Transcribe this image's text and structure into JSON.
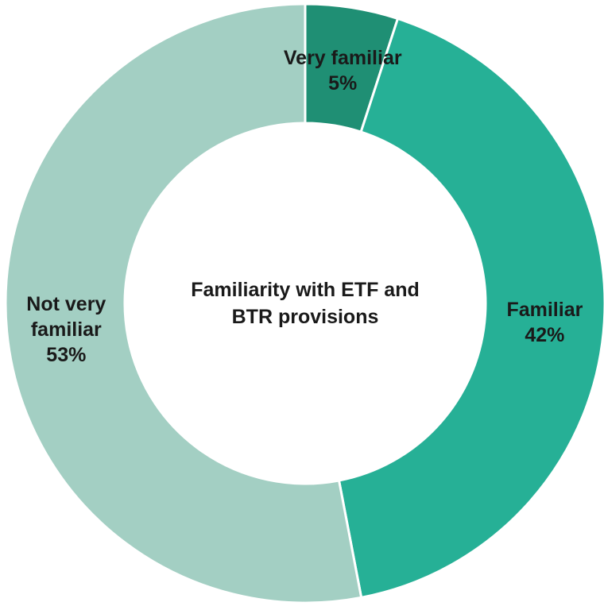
{
  "chart_data": {
    "type": "donut",
    "title": "Familiarity with ETF and BTR provisions",
    "categories": [
      "Very familiar",
      "Familiar",
      "Not very familiar"
    ],
    "values": [
      5,
      42,
      53
    ],
    "value_labels": [
      "5%",
      "42%",
      "53%"
    ],
    "colors": [
      "#1f8f74",
      "#26b096",
      "#a3cfc3"
    ]
  }
}
